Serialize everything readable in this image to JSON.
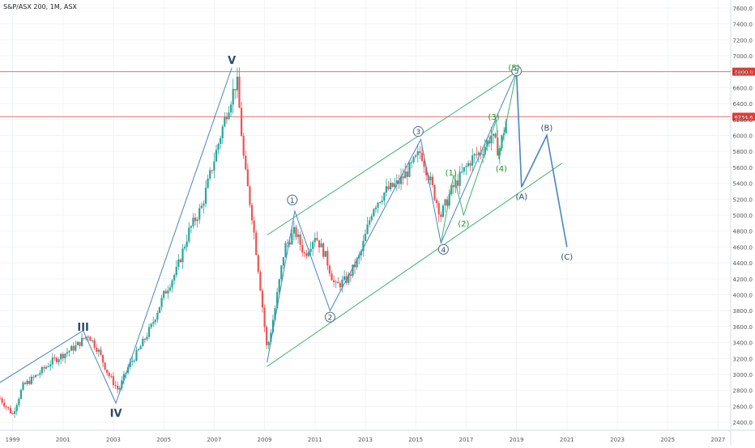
{
  "header": {
    "symbol_title": "S&P/ASX 200, 1M, ASX"
  },
  "chart_data": {
    "type": "candlestick",
    "title": "S&P/ASX 200, 1M, ASX",
    "xlim": [
      1998.5,
      2027.5
    ],
    "ylim": [
      2300,
      7700
    ],
    "x_ticks": [
      "1999",
      "2001",
      "2003",
      "2005",
      "2007",
      "2009",
      "2011",
      "2013",
      "2015",
      "2017",
      "2019",
      "2021",
      "2023",
      "2025",
      "2027"
    ],
    "y_ticks": [
      "2400.0",
      "2600.0",
      "2800.0",
      "3000.0",
      "3200.0",
      "3400.0",
      "3600.0",
      "3800.0",
      "4000.0",
      "4200.0",
      "4400.0",
      "4600.0",
      "4800.0",
      "5000.0",
      "5200.0",
      "5400.0",
      "5600.0",
      "5800.0",
      "6000.0",
      "6200.0",
      "6400.0",
      "6600.0",
      "6800.0",
      "7000.0",
      "7200.0",
      "7400.0",
      "7600.0"
    ],
    "price_anchors": [
      [
        1998.5,
        2700
      ],
      [
        1999.0,
        2500
      ],
      [
        1999.4,
        2850
      ],
      [
        2000.0,
        3000
      ],
      [
        2000.5,
        3150
      ],
      [
        2001.0,
        3250
      ],
      [
        2001.5,
        3350
      ],
      [
        2002.0,
        3500
      ],
      [
        2002.4,
        3300
      ],
      [
        2002.8,
        3000
      ],
      [
        2003.2,
        2800
      ],
      [
        2003.6,
        3100
      ],
      [
        2004.0,
        3300
      ],
      [
        2004.5,
        3600
      ],
      [
        2005.0,
        4000
      ],
      [
        2005.5,
        4300
      ],
      [
        2006.0,
        4800
      ],
      [
        2006.5,
        5100
      ],
      [
        2007.0,
        5700
      ],
      [
        2007.5,
        6300
      ],
      [
        2007.9,
        6700
      ],
      [
        2008.2,
        5600
      ],
      [
        2008.5,
        5000
      ],
      [
        2008.8,
        4200
      ],
      [
        2009.1,
        3300
      ],
      [
        2009.4,
        3800
      ],
      [
        2009.8,
        4600
      ],
      [
        2010.2,
        4800
      ],
      [
        2010.6,
        4500
      ],
      [
        2011.0,
        4750
      ],
      [
        2011.4,
        4500
      ],
      [
        2011.8,
        4100
      ],
      [
        2012.3,
        4200
      ],
      [
        2012.8,
        4500
      ],
      [
        2013.3,
        5100
      ],
      [
        2013.8,
        5300
      ],
      [
        2014.3,
        5400
      ],
      [
        2014.8,
        5600
      ],
      [
        2015.2,
        5800
      ],
      [
        2015.6,
        5400
      ],
      [
        2016.0,
        5000
      ],
      [
        2016.4,
        5300
      ],
      [
        2016.8,
        5500
      ],
      [
        2017.2,
        5700
      ],
      [
        2017.6,
        5800
      ],
      [
        2018.0,
        6000
      ],
      [
        2018.3,
        5800
      ],
      [
        2018.6,
        6200
      ]
    ],
    "price_levels": [
      {
        "value": 6800.0,
        "label": "6800.0",
        "color": "#e57373"
      },
      {
        "value": 6234.6,
        "label": "6234.6",
        "color": "#e57373"
      }
    ],
    "up_color": "#26a69a",
    "down_color": "#ef5350",
    "wave_color": "#4a86c0",
    "channel_color": "#3cb371",
    "subwave_color": "#1a9a1a",
    "wave_lines": [
      {
        "name": "major-wave-line",
        "color": "#4a86c0",
        "points": [
          [
            1998.5,
            2900
          ],
          [
            2001.8,
            3550
          ],
          [
            2003.1,
            2640
          ],
          [
            2007.7,
            6850
          ]
        ]
      },
      {
        "name": "intermediate-wave-line",
        "color": "#4a86c0",
        "points": [
          [
            2009.1,
            3150
          ],
          [
            2010.2,
            5050
          ],
          [
            2011.6,
            3800
          ],
          [
            2015.2,
            5950
          ],
          [
            2016.0,
            4650
          ],
          [
            2019.0,
            6800
          ]
        ]
      },
      {
        "name": "projection-abc-line",
        "color": "#4a86c0",
        "points": [
          [
            2019.0,
            6800
          ],
          [
            2019.2,
            5350
          ],
          [
            2020.2,
            6000
          ],
          [
            2021.0,
            4600
          ]
        ]
      },
      {
        "name": "minor-wave-line",
        "color": "#3cb371",
        "points": [
          [
            2016.0,
            4650
          ],
          [
            2016.5,
            5500
          ],
          [
            2016.9,
            5000
          ],
          [
            2018.2,
            6200
          ],
          [
            2018.3,
            5700
          ],
          [
            2019.0,
            6800
          ]
        ]
      }
    ],
    "channel_lines": [
      {
        "name": "channel-upper-line",
        "points": [
          [
            2009.1,
            4750
          ],
          [
            2019.0,
            6800
          ]
        ]
      },
      {
        "name": "channel-lower-line",
        "points": [
          [
            2009.1,
            3100
          ],
          [
            2020.8,
            5650
          ]
        ]
      }
    ],
    "wave_labels": [
      {
        "text": "III",
        "x": 2001.8,
        "y": 3600,
        "style": "bold"
      },
      {
        "text": "IV",
        "x": 2003.1,
        "y": 2520,
        "style": "bold"
      },
      {
        "text": "V",
        "x": 2007.7,
        "y": 6950,
        "style": "bold"
      },
      {
        "text": "1",
        "x": 2010.1,
        "y": 5190,
        "style": "circle"
      },
      {
        "text": "2",
        "x": 2011.6,
        "y": 3720,
        "style": "circle"
      },
      {
        "text": "3",
        "x": 2015.1,
        "y": 6050,
        "style": "circle"
      },
      {
        "text": "4",
        "x": 2016.1,
        "y": 4570,
        "style": "circle"
      },
      {
        "text": "5",
        "x": 2019.0,
        "y": 6810,
        "style": "circle"
      },
      {
        "text": "(1)",
        "x": 2016.4,
        "y": 5540,
        "style": "green"
      },
      {
        "text": "(2)",
        "x": 2016.9,
        "y": 4900,
        "style": "green"
      },
      {
        "text": "(3)",
        "x": 2018.1,
        "y": 6240,
        "style": "green"
      },
      {
        "text": "(4)",
        "x": 2018.4,
        "y": 5590,
        "style": "green"
      },
      {
        "text": "(5)",
        "x": 2018.9,
        "y": 6860,
        "style": "green"
      },
      {
        "text": "(A)",
        "x": 2019.2,
        "y": 5240,
        "style": "blue"
      },
      {
        "text": "(B)",
        "x": 2020.2,
        "y": 6100,
        "style": "blue"
      },
      {
        "text": "(C)",
        "x": 2021.0,
        "y": 4480,
        "style": "blue"
      }
    ]
  }
}
